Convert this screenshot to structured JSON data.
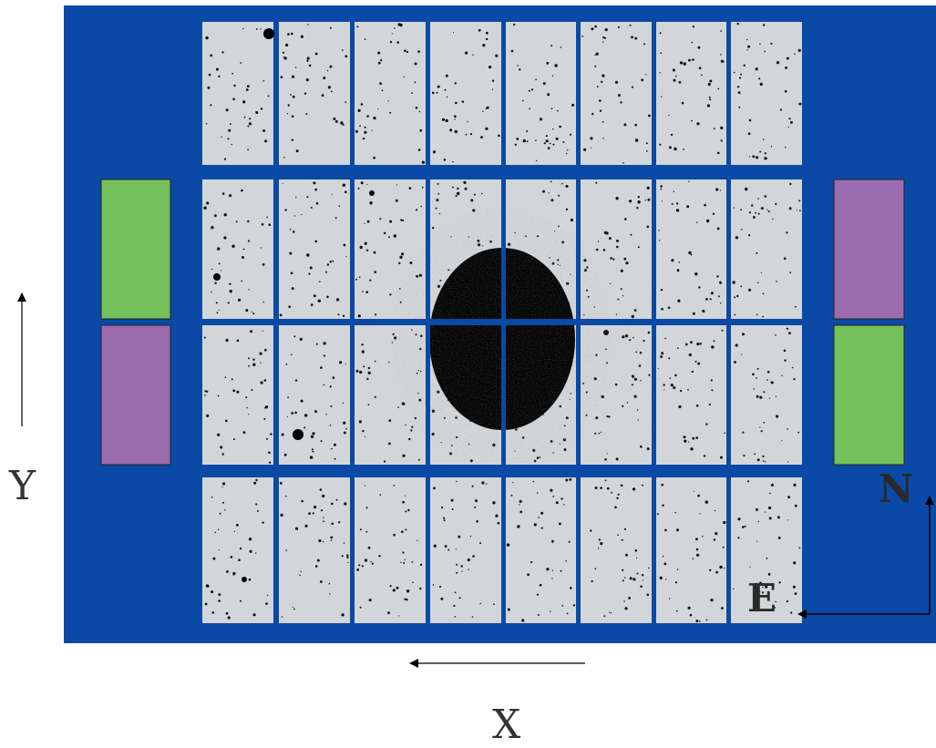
{
  "axes": {
    "x_label": "X",
    "y_label": "Y"
  },
  "compass": {
    "north_label": "N",
    "east_label": "E"
  },
  "detector": {
    "rows": 4,
    "columns": 8,
    "side_chip_colors": {
      "left_upper": "#75c15b",
      "left_lower": "#9a6cad",
      "right_upper": "#9a6cad",
      "right_lower": "#75c15b"
    }
  },
  "colors": {
    "frame_blue": "#0a4aa6",
    "chip_gray": "#d3d6d8",
    "galaxy_core": "#050505"
  }
}
